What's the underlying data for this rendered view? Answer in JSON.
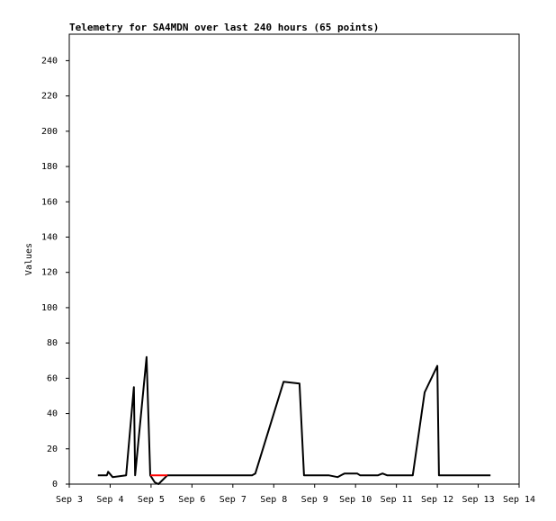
{
  "chart_data": {
    "type": "line",
    "title": "Telemetry for SA4MDN over last 240 hours (65 points)",
    "y_label": "Values",
    "xlim": [
      3,
      14
    ],
    "xticks": [
      {
        "value": 3,
        "label": "Sep 3"
      },
      {
        "value": 4,
        "label": "Sep 4"
      },
      {
        "value": 5,
        "label": "Sep 5"
      },
      {
        "value": 6,
        "label": "Sep 6"
      },
      {
        "value": 7,
        "label": "Sep 7"
      },
      {
        "value": 8,
        "label": "Sep 8"
      },
      {
        "value": 9,
        "label": "Sep 9"
      },
      {
        "value": 10,
        "label": "Sep 10"
      },
      {
        "value": 11,
        "label": "Sep 11"
      },
      {
        "value": 12,
        "label": "Sep 12"
      },
      {
        "value": 13,
        "label": "Sep 13"
      },
      {
        "value": 14,
        "label": "Sep 14"
      }
    ],
    "ylim": [
      0,
      255
    ],
    "yticks": [
      0,
      20,
      40,
      60,
      80,
      100,
      120,
      140,
      160,
      180,
      200,
      220,
      240
    ],
    "series": [
      {
        "color": "#000000",
        "x": [
          3.7,
          3.92,
          3.95,
          4.06,
          4.39,
          4.58,
          4.61,
          4.89,
          4.98,
          5.09,
          5.18,
          5.4,
          6.59,
          7.47,
          7.55,
          8.24,
          8.63,
          8.74,
          9.34,
          9.56,
          9.73,
          10.04,
          10.11,
          10.55,
          10.66,
          10.77,
          11.4,
          11.69,
          12.0,
          12.04,
          13.3
        ],
        "values": [
          5,
          5,
          7,
          4,
          5,
          55,
          5,
          72,
          5,
          1,
          0,
          5,
          5,
          5,
          6,
          58,
          57,
          5,
          5,
          4,
          6,
          6,
          5,
          5,
          6,
          5,
          5,
          52,
          67,
          5,
          5
        ]
      },
      {
        "color": "#ff0000",
        "x": [
          4.98,
          5.4
        ],
        "values": [
          5,
          5
        ]
      }
    ]
  }
}
